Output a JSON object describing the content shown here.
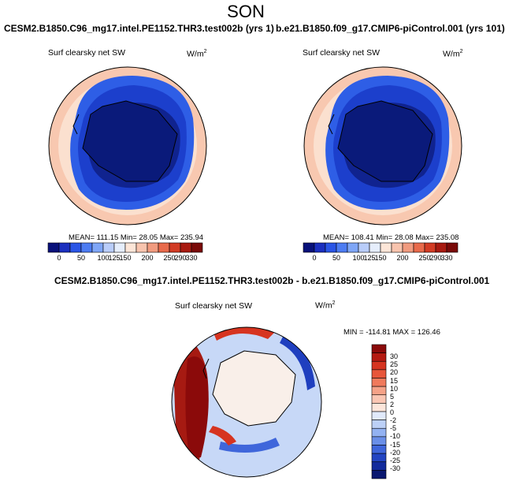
{
  "season": "SON",
  "test_run": "CESM2.B1850.C96_mg17.intel.PE1152.THR3.test002b (yrs 1)",
  "control_run": "b.e21.B1850.f09_g17.CMIP6-piControl.001 (yrs 101)",
  "diff_title": "CESM2.B1850.C96_mg17.intel.PE1152.THR3.test002b - b.e21.B1850.f09_g17.CMIP6-piControl.001",
  "variable": "Surf clearsky net SW",
  "units": "W/m",
  "units_exp": "2",
  "left_stats": "MEAN= 111.15  Min=  28.05  Max= 235.94",
  "right_stats": "MEAN= 108.41  Min=  28.08  Max= 235.08",
  "diff_stats": "MIN = -114.81 MAX = 126.46",
  "abs_colorbar": {
    "labels": [
      "0",
      "50",
      "100",
      "125",
      "150",
      "200",
      "250",
      "290",
      "330"
    ],
    "colors": [
      "#08117a",
      "#1b2fbf",
      "#2a55e6",
      "#4d7cf2",
      "#7fa6f7",
      "#b9cdfa",
      "#e6eefc",
      "#fde6d8",
      "#f8c4ae",
      "#f19b7f",
      "#e86a4b",
      "#d23b24",
      "#a81a10",
      "#7a0a08"
    ]
  },
  "diff_colorbar": {
    "labels": [
      "30",
      "25",
      "20",
      "15",
      "10",
      "5",
      "2",
      "0",
      "-2",
      "-5",
      "-10",
      "-15",
      "-20",
      "-25",
      "-30"
    ],
    "colors": [
      "#8b0a0a",
      "#b51a12",
      "#d63420",
      "#e8563a",
      "#f07a5c",
      "#f5a288",
      "#fac6b3",
      "#fde6db",
      "#e1eafb",
      "#bcd0f7",
      "#93b2f2",
      "#6a8fe8",
      "#3f66db",
      "#2244c2",
      "#122a9c",
      "#0a1870"
    ]
  }
}
